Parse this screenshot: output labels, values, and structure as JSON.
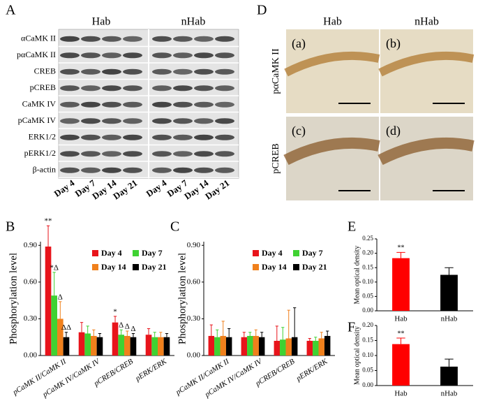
{
  "panel_labels": [
    "A",
    "D"
  ],
  "blot": {
    "groups": [
      "Hab",
      "nHab"
    ],
    "rows": [
      "αCaMK II",
      "pαCaMK II",
      "CREB",
      "pCREB",
      "CaMK IV",
      "pCaMK IV",
      "ERK1/2",
      "pERK1/2",
      "β-actin"
    ],
    "lanes": [
      "Day 4",
      "Day 7",
      "Day 14",
      "Day 21"
    ]
  },
  "micro": {
    "columns": [
      "Hab",
      "nHab"
    ],
    "rows": [
      "pαCaMK II",
      "pCREB"
    ],
    "panels": [
      "(a)",
      "(b)",
      "(c)",
      "(d)"
    ]
  },
  "chart_data": [
    {
      "type": "bar",
      "label": "B",
      "y_label": "Phosphorylation level",
      "categories": [
        "pCaMK II/CaMK II",
        "pCaMK IV/CaMK IV",
        "pCREB/CREB",
        "pERK/ERK"
      ],
      "series": [
        {
          "name": "Day 4",
          "color": "#e8141b",
          "values": [
            0.89,
            0.19,
            0.27,
            0.17
          ],
          "errors": [
            0.17,
            0.08,
            0.05,
            0.05
          ],
          "significance": [
            "**",
            null,
            "*",
            null
          ]
        },
        {
          "name": "Day 7",
          "color": "#3fd232",
          "values": [
            0.49,
            0.18,
            0.17,
            0.15
          ],
          "errors": [
            0.19,
            0.06,
            0.04,
            0.04
          ],
          "significance": [
            "*Δ",
            null,
            "Δ",
            null
          ]
        },
        {
          "name": "Day 14",
          "color": "#f0801c",
          "values": [
            0.3,
            0.16,
            0.16,
            0.15
          ],
          "errors": [
            0.14,
            0.05,
            0.04,
            0.04
          ],
          "significance": [
            "Δ",
            null,
            "Δ",
            null
          ]
        },
        {
          "name": "Day 21",
          "color": "#000000",
          "values": [
            0.15,
            0.15,
            0.15,
            0.15
          ],
          "errors": [
            0.04,
            0.03,
            0.03,
            0.03
          ],
          "significance": [
            "ΔΔ",
            null,
            "Δ",
            null
          ]
        }
      ],
      "ylim": [
        0,
        0.93
      ],
      "yticks": [
        {
          "value": 0,
          "label": "0.00"
        },
        {
          "value": 0.3,
          "label": "0.30"
        },
        {
          "value": 0.6,
          "label": "0.60"
        },
        {
          "value": 0.9,
          "label": "0.90"
        }
      ]
    },
    {
      "type": "bar",
      "label": "C",
      "y_label": "Phosphorylation level",
      "categories": [
        "pCaMK II/CaMK II",
        "pCaMK IV/CaMK IV",
        "pCREB/CREB",
        "pERK/ERK"
      ],
      "series": [
        {
          "name": "Day 4",
          "color": "#e8141b",
          "values": [
            0.16,
            0.15,
            0.12,
            0.12
          ],
          "errors": [
            0.09,
            0.04,
            0.12,
            0.02
          ]
        },
        {
          "name": "Day 7",
          "color": "#3fd232",
          "values": [
            0.15,
            0.16,
            0.13,
            0.12
          ],
          "errors": [
            0.06,
            0.03,
            0.1,
            0.03
          ]
        },
        {
          "name": "Day 14",
          "color": "#f0801c",
          "values": [
            0.16,
            0.16,
            0.14,
            0.14
          ],
          "errors": [
            0.12,
            0.05,
            0.23,
            0.05
          ]
        },
        {
          "name": "Day 21",
          "color": "#000000",
          "values": [
            0.15,
            0.15,
            0.15,
            0.16
          ],
          "errors": [
            0.07,
            0.04,
            0.24,
            0.04
          ]
        }
      ],
      "ylim": [
        0,
        0.93
      ],
      "yticks": [
        {
          "value": 0,
          "label": "0.00"
        },
        {
          "value": 0.3,
          "label": "0.30"
        },
        {
          "value": 0.6,
          "label": "0.60"
        },
        {
          "value": 0.9,
          "label": "0.90"
        }
      ]
    },
    {
      "type": "bar",
      "label": "E",
      "y_label": "Mean optical density",
      "categories": [
        "Hab",
        "nHab"
      ],
      "colors": [
        "#ff0000",
        "#000000"
      ],
      "values": [
        0.183,
        0.125
      ],
      "errors": [
        0.02,
        0.025
      ],
      "significance": [
        "**",
        null
      ],
      "ylim": [
        0,
        0.25
      ],
      "yticks": [
        {
          "value": 0,
          "label": "0.00"
        },
        {
          "value": 0.05,
          "label": "0.05"
        },
        {
          "value": 0.1,
          "label": "0.10"
        },
        {
          "value": 0.15,
          "label": "0.15"
        },
        {
          "value": 0.2,
          "label": "0.20"
        },
        {
          "value": 0.25,
          "label": "0.25"
        }
      ]
    },
    {
      "type": "bar",
      "label": "F",
      "y_label": "Mean optical density",
      "categories": [
        "Hab",
        "nHab"
      ],
      "colors": [
        "#ff0000",
        "#000000"
      ],
      "values": [
        0.138,
        0.063
      ],
      "errors": [
        0.02,
        0.025
      ],
      "significance": [
        "**",
        null
      ],
      "ylim": [
        0,
        0.2
      ],
      "yticks": [
        {
          "value": 0,
          "label": "0.00"
        },
        {
          "value": 0.05,
          "label": "0.05"
        },
        {
          "value": 0.1,
          "label": "0.10"
        },
        {
          "value": 0.15,
          "label": "0.15"
        },
        {
          "value": 0.2,
          "label": "0.20"
        }
      ]
    }
  ]
}
